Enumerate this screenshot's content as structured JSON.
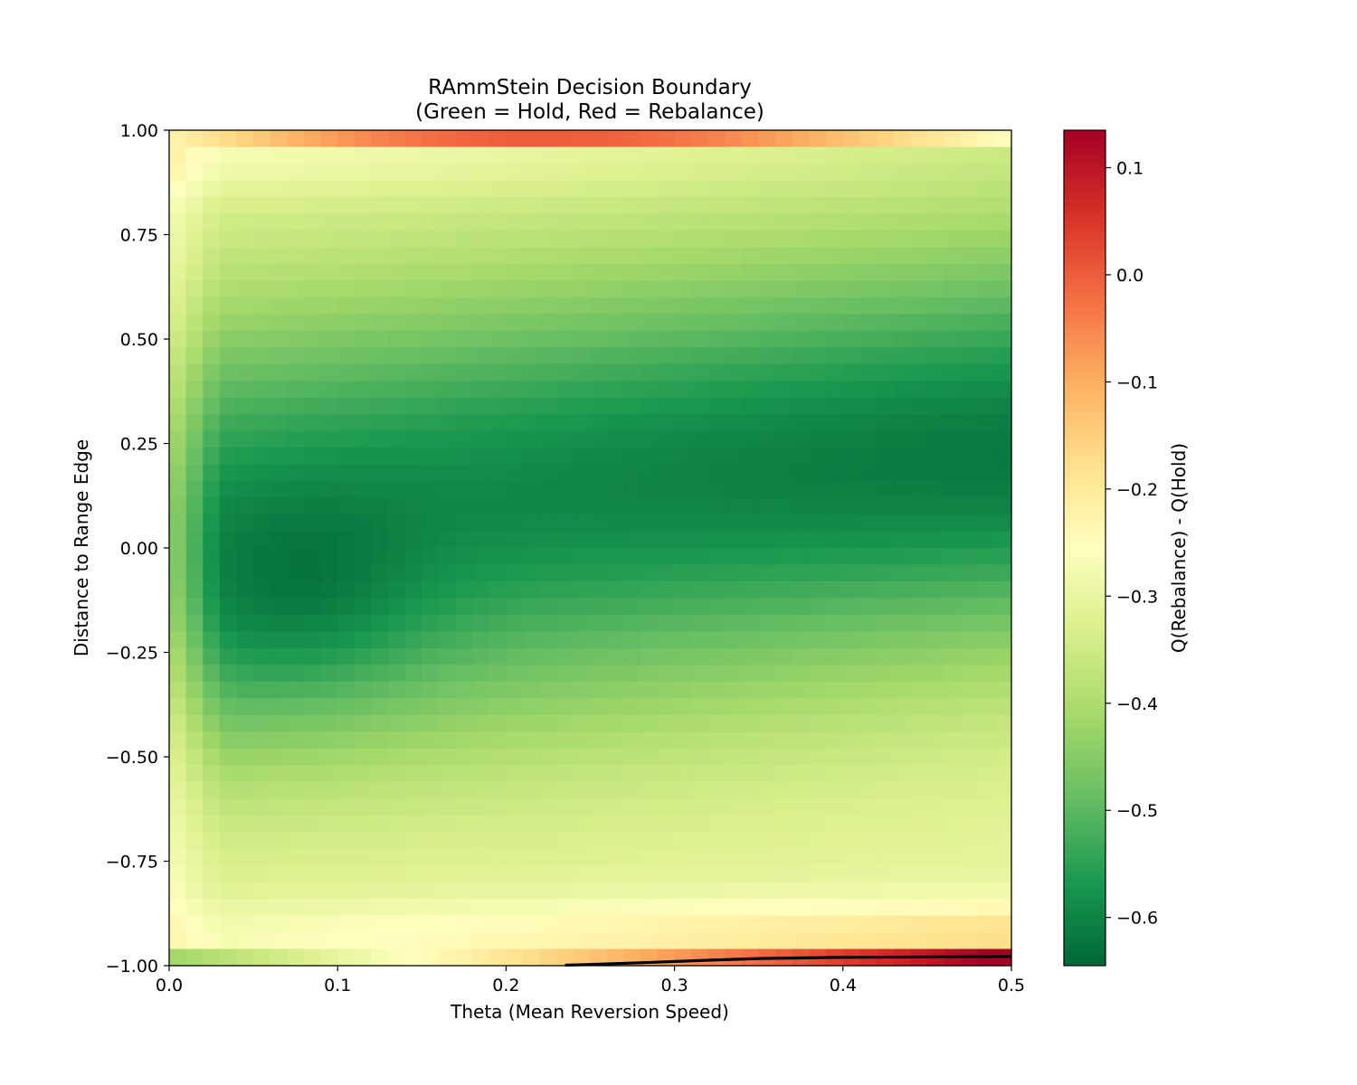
{
  "chart_data": {
    "type": "heatmap",
    "title": "RAmmStein Decision Boundary",
    "subtitle": "(Green = Hold, Red = Rebalance)",
    "xlabel": "Theta (Mean Reversion Speed)",
    "ylabel": "Distance to Range Edge",
    "xlim": [
      0.0,
      0.5
    ],
    "ylim": [
      -1.0,
      1.0
    ],
    "x_ticks": [
      "0.0",
      "0.1",
      "0.2",
      "0.3",
      "0.4",
      "0.5"
    ],
    "y_ticks": [
      "1.00",
      "0.75",
      "0.50",
      "0.25",
      "0.00",
      "−0.25",
      "−0.50",
      "−0.75",
      "−1.00"
    ],
    "grid": false,
    "colormap": "RdYlGn_r",
    "colorbar": {
      "label": "Q(Rebalance) - Q(Hold)",
      "vmin": -0.645,
      "vmax": 0.135,
      "ticks": [
        "0.1",
        "0.0",
        "−0.1",
        "−0.2",
        "−0.3",
        "−0.4",
        "−0.5",
        "−0.6"
      ]
    },
    "grid_size": {
      "nx": 50,
      "ny": 50
    },
    "value_description": "Q(Rebalance) - Q(Hold); approx. values: top edge row -0.25..0.0, interior -0.35..-0.62, bottom edge row up to 0.13 for theta > 0.3",
    "decision_boundary": {
      "level": 0.0,
      "color": "#000000",
      "points": [
        [
          0.235,
          -0.999
        ],
        [
          0.28,
          -0.993
        ],
        [
          0.32,
          -0.987
        ],
        [
          0.35,
          -0.983
        ],
        [
          0.4,
          -0.98
        ],
        [
          0.45,
          -0.979
        ],
        [
          0.5,
          -0.978
        ]
      ]
    }
  }
}
